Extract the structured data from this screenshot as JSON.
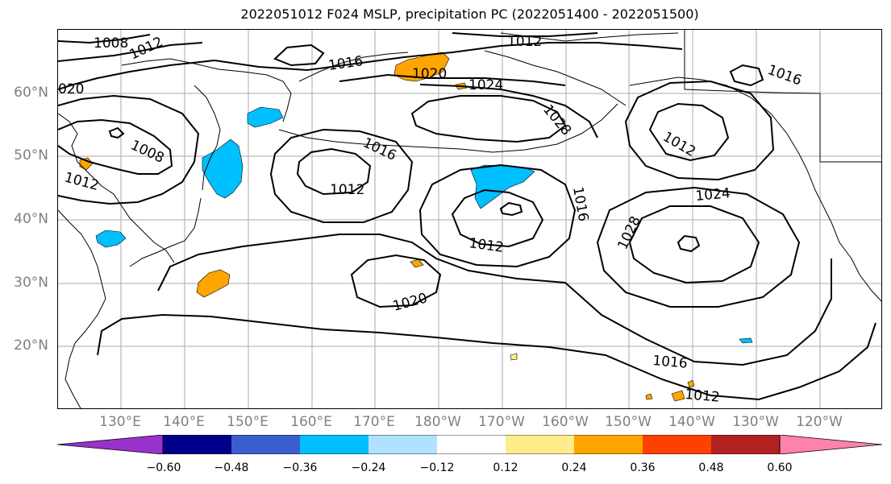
{
  "title": "2022051012 F024 MSLP, precipitation PC (2022051400 - 2022051500)",
  "lat_labels": [
    "60°N",
    "50°N",
    "40°N",
    "30°N",
    "20°N"
  ],
  "lon_labels": [
    "130°E",
    "140°E",
    "150°E",
    "160°E",
    "170°E",
    "180°W",
    "170°W",
    "160°W",
    "150°W",
    "140°W",
    "130°W",
    "120°W"
  ],
  "isobar_labels": {
    "a": "1008",
    "b": "1012",
    "c": "020",
    "d": "1016",
    "e": "1012",
    "f": "1020",
    "g": "1024",
    "h": "1028",
    "i": "1016",
    "j": "1008",
    "k": "1012",
    "l": "1016",
    "m": "1012",
    "n": "1016",
    "o": "1012",
    "p": "1028",
    "q": "1024",
    "r": "1012",
    "s": "1020",
    "t": "1016",
    "u": "1012"
  },
  "colorbar": {
    "ticks": [
      "−0.60",
      "−0.48",
      "−0.36",
      "−0.24",
      "−0.12",
      "0.12",
      "0.24",
      "0.36",
      "0.48",
      "0.60"
    ],
    "colors": [
      "#9932CC",
      "#00008B",
      "#3A5FCD",
      "#00BFFF",
      "#B0E2FF",
      "#FFFFFF",
      "#FFEC8B",
      "#FFA500",
      "#FF4000",
      "#B22222",
      "#FF82AB"
    ]
  }
}
